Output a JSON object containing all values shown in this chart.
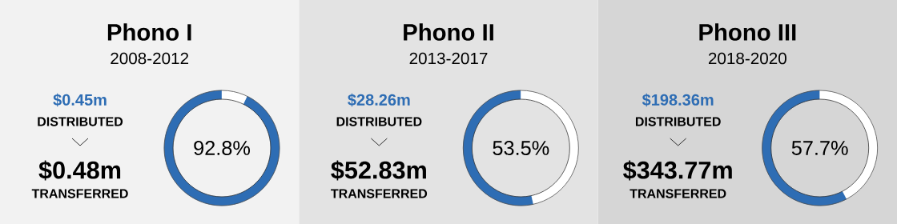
{
  "chart_data": [
    {
      "type": "donut",
      "title": "Phono I",
      "subtitle": "2008-2012",
      "categories": [
        null,
        null
      ],
      "values": [
        92.8,
        7.2
      ],
      "colors": [
        "#2e6db4",
        "#ffffff"
      ],
      "annotations": [
        "$0.45m",
        "DISTRIBUTED",
        "$0.48m",
        "TRANSFERRED",
        "92.8%"
      ]
    },
    {
      "type": "donut",
      "title": "Phono II",
      "subtitle": "2013-2017",
      "categories": [
        null,
        null
      ],
      "values": [
        53.5,
        46.5
      ],
      "colors": [
        "#2e6db4",
        "#ffffff"
      ],
      "annotations": [
        "$28.26m",
        "DISTRIBUTED",
        "$52.83m",
        "TRANSFERRED",
        "53.5%"
      ]
    },
    {
      "type": "donut",
      "title": "Phono III",
      "subtitle": "2018-2020",
      "categories": [
        null,
        null
      ],
      "values": [
        57.7,
        42.3
      ],
      "colors": [
        "#2e6db4",
        "#ffffff"
      ],
      "annotations": [
        "$198.36m",
        "DISTRIBUTED",
        "$343.77m",
        "TRANSFERRED",
        "57.7%"
      ]
    }
  ]
}
